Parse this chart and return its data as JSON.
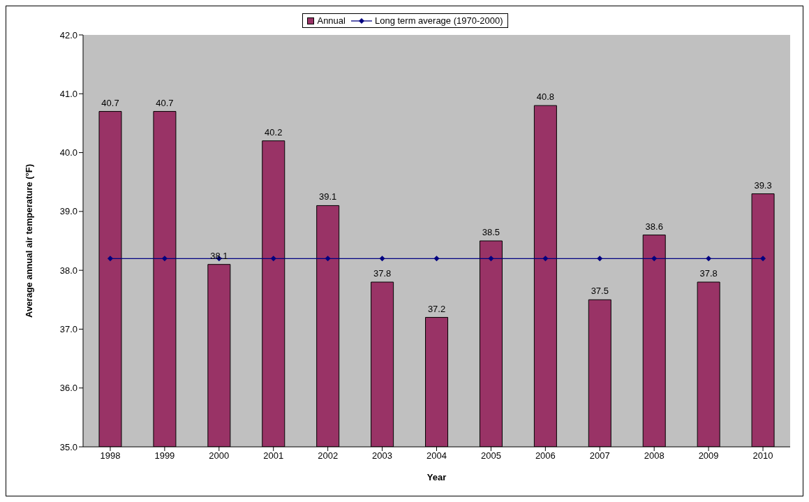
{
  "chart_data": {
    "type": "bar",
    "xlabel": "Year",
    "ylabel": "Average annual air temperature (°F)",
    "categories": [
      "1998",
      "1999",
      "2000",
      "2001",
      "2002",
      "2003",
      "2004",
      "2005",
      "2006",
      "2007",
      "2008",
      "2009",
      "2010"
    ],
    "series": [
      {
        "name": "Annual",
        "color": "#993366",
        "values": [
          40.7,
          40.7,
          38.1,
          40.2,
          39.1,
          37.8,
          37.2,
          38.5,
          40.8,
          37.5,
          38.6,
          37.8,
          39.3
        ],
        "value_labels": [
          "40.7",
          "40.7",
          "38.1",
          "40.2",
          "39.1",
          "37.8",
          "37.2",
          "38.5",
          "40.8",
          "37.5",
          "38.6",
          "37.8",
          "39.3"
        ]
      },
      {
        "name": "Long term average (1970-2000)",
        "type": "line",
        "color": "#000080",
        "marker": "diamond",
        "values": [
          38.2,
          38.2,
          38.2,
          38.2,
          38.2,
          38.2,
          38.2,
          38.2,
          38.2,
          38.2,
          38.2,
          38.2,
          38.2
        ]
      }
    ],
    "ylim": [
      35,
      42
    ],
    "yticks": [
      {
        "value": 35,
        "label": "35.0"
      },
      {
        "value": 36,
        "label": "36.0"
      },
      {
        "value": 37,
        "label": "37.0"
      },
      {
        "value": 38,
        "label": "38.0"
      },
      {
        "value": 39,
        "label": "39.0"
      },
      {
        "value": 40,
        "label": "40.0"
      },
      {
        "value": 41,
        "label": "41.0"
      },
      {
        "value": 42,
        "label": "42.0"
      }
    ],
    "legend": "top"
  }
}
